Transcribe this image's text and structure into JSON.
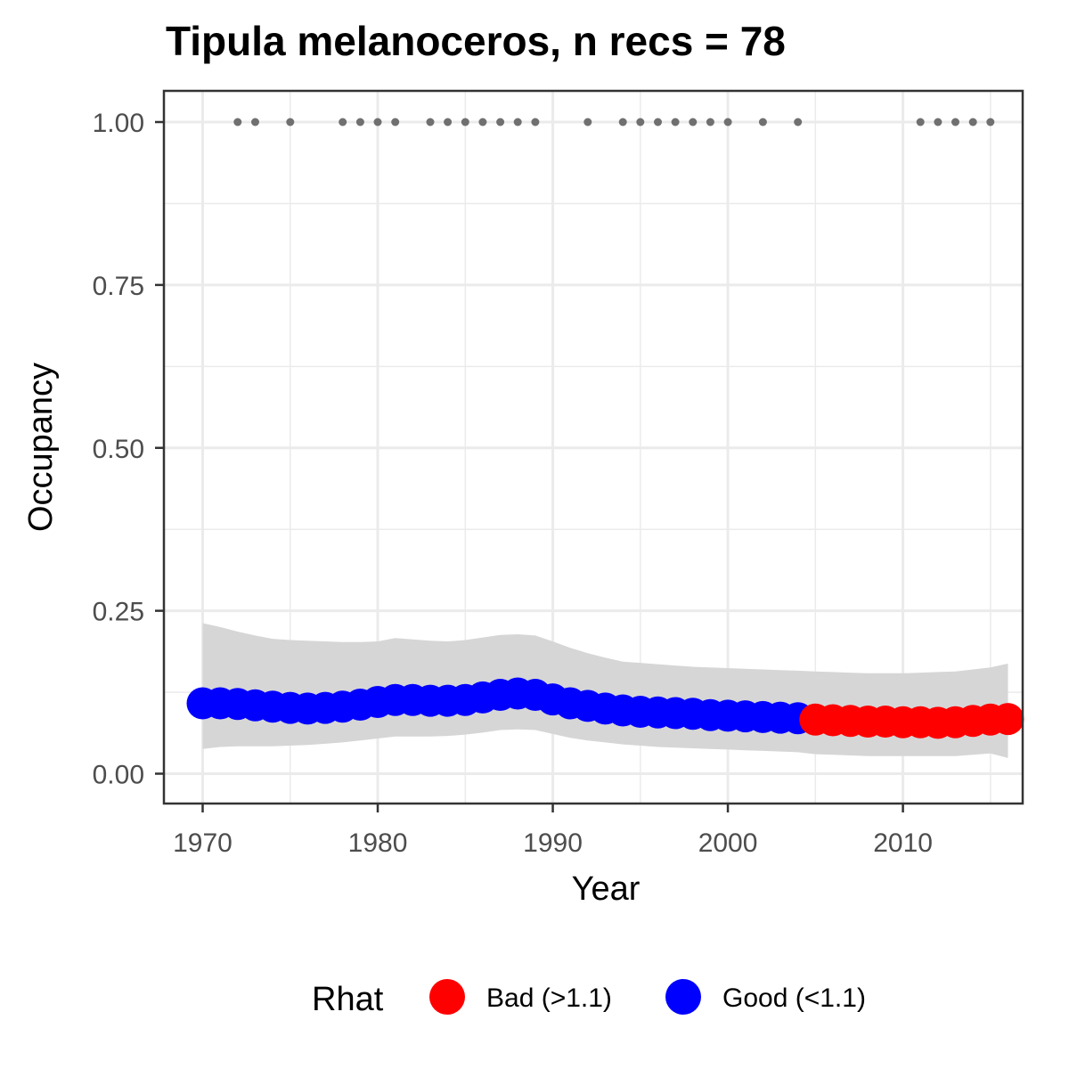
{
  "chart_data": {
    "type": "line",
    "title": "Tipula melanoceros, n recs = 78",
    "xlabel": "Year",
    "ylabel": "Occupancy",
    "xlim": [
      1970,
      2016
    ],
    "ylim": [
      0,
      1
    ],
    "x_ticks": [
      1970,
      1980,
      1990,
      2000,
      2010
    ],
    "x_tick_labels": [
      "1970",
      "1980",
      "1990",
      "2000",
      "2010"
    ],
    "y_ticks": [
      0,
      0.25,
      0.5,
      0.75,
      1
    ],
    "y_tick_labels": [
      "0.00",
      "0.25",
      "0.50",
      "0.75",
      "1.00"
    ],
    "grid": true,
    "legend": {
      "title": "Rhat",
      "position": "bottom",
      "entries": [
        {
          "label": "Bad (>1.1)",
          "color": "#ff0000"
        },
        {
          "label": "Good (<1.1)",
          "color": "#0000ff"
        }
      ]
    },
    "colors": {
      "good": "#0000ff",
      "bad": "#ff0000",
      "ribbon": "#d6d6d6",
      "records": "#707070",
      "grid": "#ebebeb",
      "panel_border": "#333333"
    },
    "series": [
      {
        "x": [
          1970,
          1971,
          1972,
          1973,
          1974,
          1975,
          1976,
          1977,
          1978,
          1979,
          1980,
          1981,
          1982,
          1983,
          1984,
          1985,
          1986,
          1987,
          1988,
          1989,
          1990,
          1991,
          1992,
          1993,
          1994,
          1995,
          1996,
          1997,
          1998,
          1999,
          2000,
          2001,
          2002,
          2003,
          2004,
          2005,
          2006,
          2007,
          2008,
          2009,
          2010,
          2011,
          2012,
          2013,
          2014,
          2015,
          2016
        ],
        "occupancy": [
          0.108,
          0.108,
          0.107,
          0.105,
          0.103,
          0.101,
          0.1,
          0.101,
          0.103,
          0.106,
          0.11,
          0.113,
          0.113,
          0.112,
          0.112,
          0.113,
          0.117,
          0.121,
          0.123,
          0.121,
          0.114,
          0.108,
          0.104,
          0.1,
          0.097,
          0.095,
          0.094,
          0.093,
          0.092,
          0.09,
          0.089,
          0.088,
          0.087,
          0.086,
          0.085,
          0.083,
          0.082,
          0.081,
          0.08,
          0.08,
          0.079,
          0.079,
          0.078,
          0.079,
          0.081,
          0.083,
          0.084
        ],
        "lower": [
          0.038,
          0.041,
          0.042,
          0.042,
          0.042,
          0.043,
          0.044,
          0.046,
          0.048,
          0.051,
          0.054,
          0.057,
          0.057,
          0.057,
          0.058,
          0.06,
          0.063,
          0.067,
          0.068,
          0.067,
          0.061,
          0.055,
          0.051,
          0.048,
          0.045,
          0.043,
          0.041,
          0.04,
          0.039,
          0.038,
          0.037,
          0.036,
          0.035,
          0.034,
          0.033,
          0.03,
          0.029,
          0.028,
          0.027,
          0.027,
          0.027,
          0.027,
          0.027,
          0.027,
          0.029,
          0.031,
          0.024
        ],
        "upper": [
          0.231,
          0.225,
          0.218,
          0.212,
          0.207,
          0.205,
          0.204,
          0.203,
          0.202,
          0.202,
          0.203,
          0.208,
          0.206,
          0.204,
          0.203,
          0.205,
          0.209,
          0.213,
          0.214,
          0.212,
          0.203,
          0.193,
          0.185,
          0.178,
          0.172,
          0.17,
          0.168,
          0.166,
          0.164,
          0.163,
          0.162,
          0.161,
          0.16,
          0.159,
          0.158,
          0.157,
          0.156,
          0.155,
          0.154,
          0.154,
          0.154,
          0.155,
          0.156,
          0.157,
          0.16,
          0.163,
          0.169
        ],
        "rhat": [
          "Good",
          "Good",
          "Good",
          "Good",
          "Good",
          "Good",
          "Good",
          "Good",
          "Good",
          "Good",
          "Good",
          "Good",
          "Good",
          "Good",
          "Good",
          "Good",
          "Good",
          "Good",
          "Good",
          "Good",
          "Good",
          "Good",
          "Good",
          "Good",
          "Good",
          "Good",
          "Good",
          "Good",
          "Good",
          "Good",
          "Good",
          "Good",
          "Good",
          "Good",
          "Good",
          "Bad",
          "Bad",
          "Bad",
          "Bad",
          "Bad",
          "Bad",
          "Bad",
          "Bad",
          "Bad",
          "Bad",
          "Bad",
          "Bad"
        ]
      }
    ],
    "record_years": [
      1972,
      1973,
      1975,
      1978,
      1979,
      1980,
      1981,
      1983,
      1984,
      1985,
      1986,
      1987,
      1988,
      1989,
      1992,
      1994,
      1995,
      1996,
      1997,
      1998,
      1999,
      2000,
      2002,
      2004,
      2011,
      2012,
      2013,
      2014,
      2015
    ],
    "record_value": 1.0
  }
}
